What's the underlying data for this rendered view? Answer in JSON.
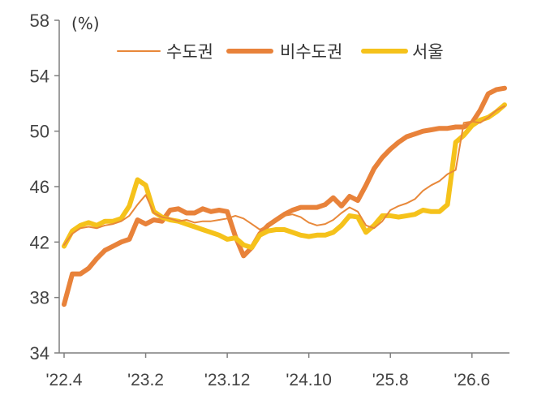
{
  "chart_data": {
    "type": "line",
    "unit_label": "(%)",
    "xlabel": "",
    "ylabel": "",
    "ylim": [
      34,
      58
    ],
    "y_ticks": [
      "58",
      "54",
      "50",
      "46",
      "42",
      "38",
      "34"
    ],
    "x_tick_labels": [
      "'22.4",
      "'23.2",
      "'23.12",
      "'24.10",
      "'25.8",
      "'26.6"
    ],
    "legend_position": "top",
    "grid": false,
    "series": [
      {
        "name": "수도권",
        "color": "#e8883a",
        "values": [
          41.8,
          42.6,
          43.0,
          43.1,
          43.0,
          43.2,
          43.3,
          43.5,
          43.9,
          44.7,
          45.4,
          44.1,
          43.8,
          43.7,
          43.5,
          43.6,
          43.4,
          43.5,
          43.5,
          43.6,
          43.7,
          43.9,
          43.7,
          43.3,
          42.9,
          43.2,
          43.6,
          43.9,
          44.0,
          43.8,
          43.4,
          43.2,
          43.3,
          43.6,
          44.1,
          44.5,
          44.2,
          43.2,
          43.0,
          43.5,
          44.3,
          44.6,
          44.8,
          45.1,
          45.7,
          46.1,
          46.4,
          46.9,
          47.2,
          50.6,
          50.7,
          50.6,
          51.0,
          51.5,
          51.8
        ]
      },
      {
        "name": "비수도권",
        "color": "#e8823a",
        "values": [
          37.5,
          39.7,
          39.7,
          40.1,
          40.8,
          41.4,
          41.7,
          42.0,
          42.2,
          43.6,
          43.3,
          43.6,
          43.5,
          44.3,
          44.4,
          44.1,
          44.1,
          44.4,
          44.2,
          44.3,
          44.2,
          42.4,
          41.0,
          41.6,
          42.6,
          43.2,
          43.6,
          44.0,
          44.3,
          44.5,
          44.5,
          44.5,
          44.7,
          45.2,
          44.6,
          45.3,
          45.0,
          46.1,
          47.3,
          48.1,
          48.7,
          49.2,
          49.6,
          49.8,
          50.0,
          50.1,
          50.2,
          50.2,
          50.3,
          50.3,
          50.6,
          51.5,
          52.7,
          53.0,
          53.1
        ]
      },
      {
        "name": "서울",
        "color": "#f5c21b",
        "values": [
          41.7,
          42.8,
          43.2,
          43.4,
          43.2,
          43.5,
          43.5,
          43.7,
          44.6,
          46.5,
          46.1,
          44.2,
          43.8,
          43.6,
          43.5,
          43.3,
          43.1,
          42.9,
          42.7,
          42.5,
          42.2,
          42.3,
          41.8,
          41.6,
          42.5,
          42.8,
          42.9,
          42.9,
          42.7,
          42.5,
          42.4,
          42.5,
          42.5,
          42.7,
          43.2,
          43.9,
          43.8,
          42.7,
          43.2,
          43.9,
          43.9,
          43.8,
          43.9,
          44.0,
          44.3,
          44.2,
          44.2,
          44.7,
          49.2,
          49.7,
          50.4,
          50.8,
          51.0,
          51.4,
          51.9
        ]
      }
    ]
  }
}
